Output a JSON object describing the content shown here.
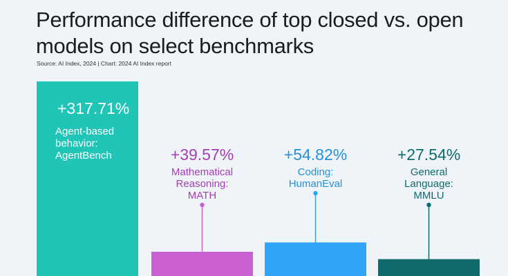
{
  "title": "Performance difference of top closed vs. open models on select benchmarks",
  "source": "Source: AI Index, 2024 | Chart: 2024 AI Index report",
  "chart_data": {
    "type": "bar",
    "title": "Performance difference of top closed vs. open models on select benchmarks",
    "xlabel": "",
    "ylabel": "",
    "grid": false,
    "legend": "none",
    "unit": "%",
    "categories": [
      "Agent-based behavior: AgentBench",
      "Mathematical Reasoning: MATH",
      "Coding: HumanEval",
      "General Language: MMLU"
    ],
    "values": [
      317.71,
      39.57,
      54.82,
      27.54
    ],
    "value_labels": [
      "+317.71%",
      "+39.57%",
      "+54.82%",
      "+27.54%"
    ],
    "label_lines": [
      [
        "Agent-based",
        "behavior:",
        "AgentBench"
      ],
      [
        "Mathematical",
        "Reasoning:",
        "MATH"
      ],
      [
        "Coding:",
        "HumanEval"
      ],
      [
        "General",
        "Language:",
        "MMLU"
      ]
    ],
    "colors": [
      "#20c5b8",
      "#c95fd1",
      "#2ea4f4",
      "#0f6b6b"
    ],
    "text_colors": [
      "#ffffff",
      "#a43fb3",
      "#2690d8",
      "#0f6b6b"
    ]
  }
}
